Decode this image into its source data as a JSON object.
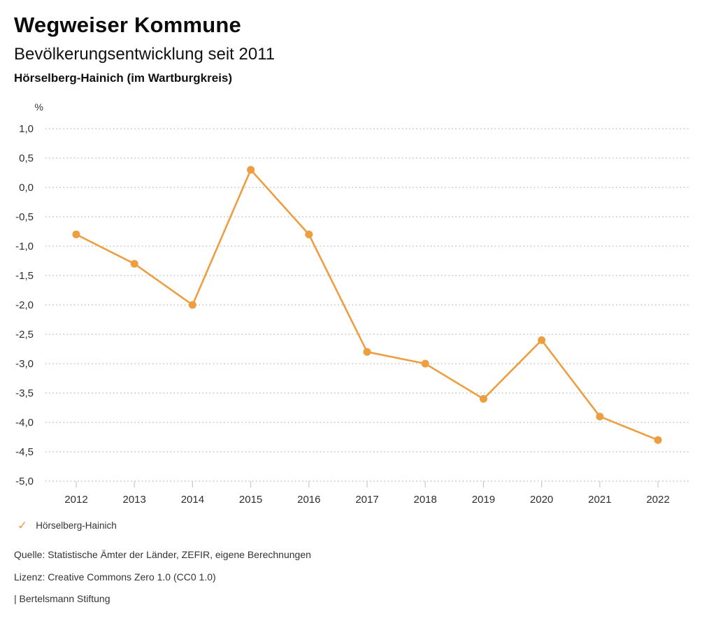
{
  "header": {
    "title": "Wegweiser Kommune",
    "subtitle": "Bevölkerungsentwicklung seit 2011",
    "region": "Hörselberg-Hainich (im Wartburgkreis)"
  },
  "chart_data": {
    "type": "line",
    "title": "Bevölkerungsentwicklung seit 2011",
    "region": "Hörselberg-Hainich (im Wartburgkreis)",
    "ylabel": "%",
    "xlabel": "",
    "x": [
      2012,
      2013,
      2014,
      2015,
      2016,
      2017,
      2018,
      2019,
      2020,
      2021,
      2022
    ],
    "series": [
      {
        "name": "Hörselberg-Hainich",
        "values": [
          -0.8,
          -1.3,
          -2.0,
          0.3,
          -0.8,
          -2.8,
          -3.0,
          -3.6,
          -2.6,
          -3.9,
          -4.3
        ]
      }
    ],
    "ylim": [
      -5.0,
      1.0
    ],
    "ytick_values": [
      1.0,
      0.5,
      0.0,
      -0.5,
      -1.0,
      -1.5,
      -2.0,
      -2.5,
      -3.0,
      -3.5,
      -4.0,
      -4.5,
      -5.0
    ],
    "ytick_labels": [
      "1,0",
      "0,5",
      "0,0",
      "-0,5",
      "-1,0",
      "-1,5",
      "-2,0",
      "-2,5",
      "-3,0",
      "-3,5",
      "-4,0",
      "-4,5",
      "-5,0"
    ],
    "grid": "horizontal-dotted",
    "legend_position": "bottom-left",
    "colors": {
      "line": "#EC9E41",
      "marker": "#EC9E41",
      "gridline": "#B5B5B5",
      "tick": "#C8C8C8",
      "tick_label": "#2E2E2E"
    }
  },
  "legend": {
    "check_icon": "✓",
    "label": "Hörselberg-Hainich"
  },
  "footer": {
    "source": "Quelle: Statistische Ämter der Länder, ZEFIR, eigene Berechnungen",
    "license": "Lizenz: Creative Commons Zero 1.0 (CC0 1.0)",
    "attribution": "| Bertelsmann Stiftung"
  }
}
